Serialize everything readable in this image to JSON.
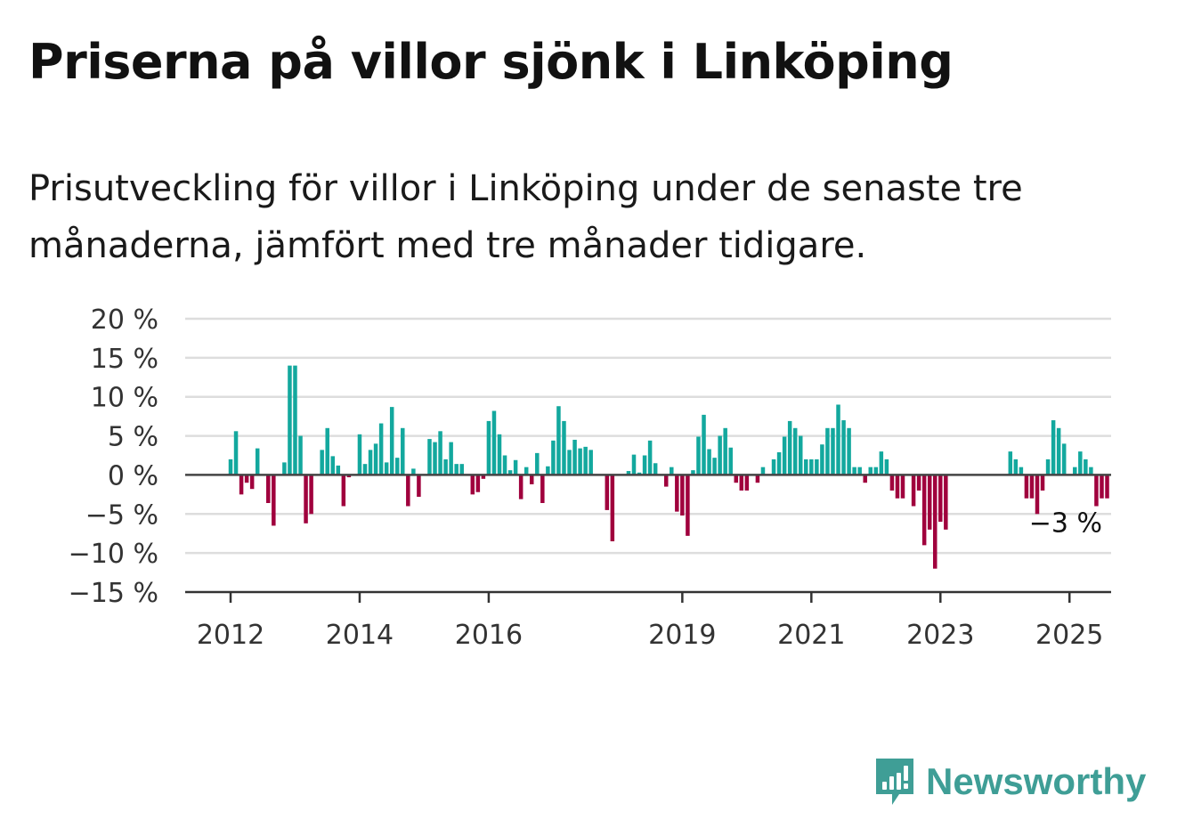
{
  "title": "Priserna på villor sjönk i Linköping",
  "subtitle": "Prisutveckling för villor i Linköping under de senaste tre månaderna, jämfört med tre månader tidigare.",
  "brand": "Newsworthy",
  "colors": {
    "positive": "#13a89e",
    "negative": "#a0003d",
    "brand": "#3f9e96"
  },
  "chart_data": {
    "type": "bar",
    "x_start": "2012-01",
    "frequency": "monthly",
    "ylim": [
      -15,
      20
    ],
    "yticks": [
      20,
      15,
      10,
      5,
      0,
      -5,
      -10,
      -15
    ],
    "ytick_labels": [
      "20 %",
      "15 %",
      "10 %",
      "5 %",
      "0 %",
      "−5 %",
      "−10 %",
      "−15 %"
    ],
    "xtick_labels": [
      "2012",
      "2014",
      "2016",
      "2019",
      "2021",
      "2023",
      "2025"
    ],
    "grid": true,
    "annotation": "−3 %",
    "values": [
      2,
      5.6,
      -2.5,
      -1,
      -1.8,
      3.4,
      0,
      -3.6,
      -6.5,
      0,
      1.6,
      14,
      14,
      5,
      -6.2,
      -5,
      0,
      3.2,
      6,
      2.4,
      1.2,
      -4,
      -0.3,
      0,
      5.2,
      1.4,
      3.2,
      4,
      6.6,
      1.6,
      8.7,
      2.2,
      6,
      -4,
      0.8,
      -2.8,
      0,
      4.6,
      4.2,
      5.6,
      2,
      4.2,
      1.4,
      1.4,
      0,
      -2.5,
      -2.2,
      -0.5,
      6.9,
      8.2,
      5.2,
      2.5,
      0.6,
      1.9,
      -3.1,
      1,
      -1.2,
      2.8,
      -3.6,
      1.1,
      4.4,
      8.8,
      6.9,
      3.2,
      4.5,
      3.4,
      3.6,
      3.2,
      0,
      0,
      -4.5,
      -8.5,
      0,
      0,
      0.5,
      2.6,
      0.3,
      2.5,
      4.4,
      1.5,
      0,
      -1.5,
      1,
      -4.7,
      -5.2,
      -7.8,
      0.6,
      4.9,
      7.7,
      3.3,
      2.2,
      5,
      6,
      3.5,
      -1,
      -2,
      -2,
      0,
      -1,
      1,
      0,
      2,
      2.9,
      4.9,
      6.9,
      6,
      5,
      2,
      2,
      2,
      3.9,
      6,
      6,
      9,
      7,
      6,
      1,
      1,
      -1,
      1,
      1,
      3,
      2,
      -2,
      -3,
      -3,
      0,
      -4,
      -2,
      -9,
      -7,
      -12,
      -6,
      -7,
      0,
      0,
      0,
      0,
      0,
      0,
      0,
      0,
      0,
      0,
      0,
      3,
      2,
      1,
      -3,
      -3,
      -5,
      -2,
      2,
      7,
      6,
      4,
      0,
      1,
      3,
      2,
      1,
      -4,
      -3,
      -3
    ]
  }
}
